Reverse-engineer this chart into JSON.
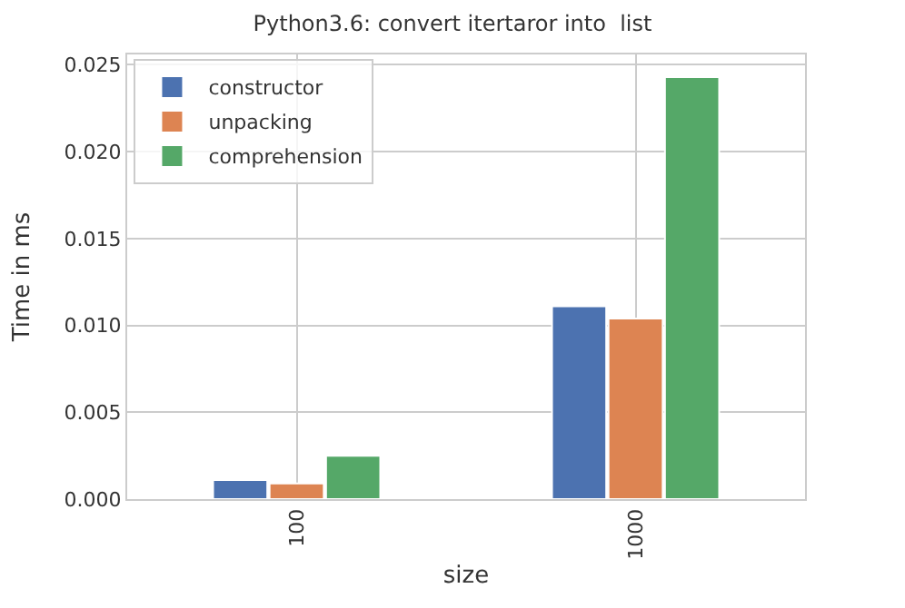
{
  "chart_data": {
    "type": "bar",
    "title": "Python3.6: convert itertaror into  list",
    "xlabel": "size",
    "ylabel": "Time in ms",
    "categories": [
      "100",
      "1000"
    ],
    "series": [
      {
        "name": "constructor",
        "color": "#4c72b0",
        "values": [
          0.0011,
          0.0111
        ]
      },
      {
        "name": "unpacking",
        "color": "#dd8452",
        "values": [
          0.0009,
          0.0104
        ]
      },
      {
        "name": "comprehension",
        "color": "#55a868",
        "values": [
          0.0025,
          0.0243
        ]
      }
    ],
    "ylim": [
      0,
      0.0256
    ],
    "yticks": [
      {
        "value": 0,
        "label": "0.000"
      },
      {
        "value": 0.005,
        "label": "0.005"
      },
      {
        "value": 0.01,
        "label": "0.010"
      },
      {
        "value": 0.015,
        "label": "0.015"
      },
      {
        "value": 0.02,
        "label": "0.020"
      },
      {
        "value": 0.025,
        "label": "0.025"
      }
    ],
    "grid": true,
    "legend": "top left"
  }
}
